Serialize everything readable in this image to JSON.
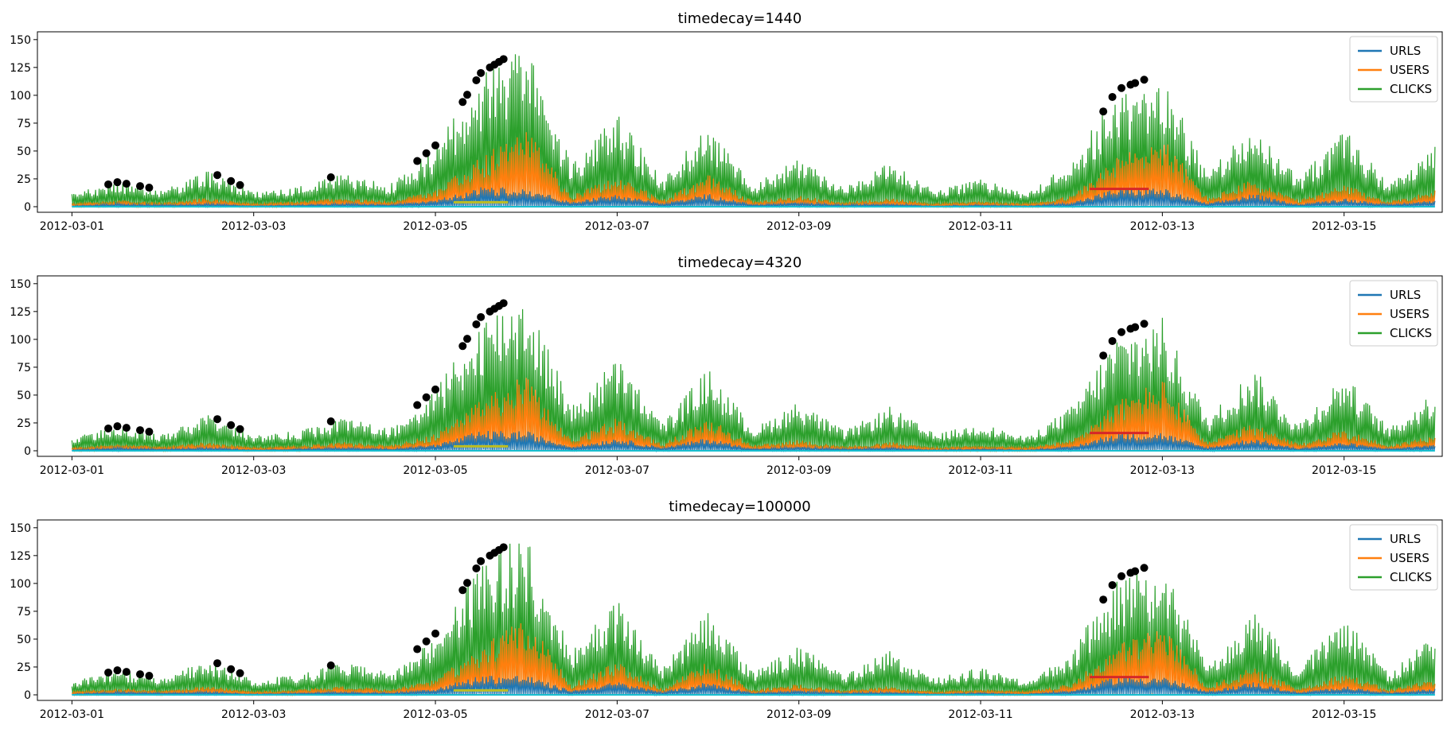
{
  "colors": {
    "urls": "#1f77b4",
    "users": "#ff7f0e",
    "clicks": "#2ca02c",
    "peak_marker": "#000000",
    "highlight_red": "#d62728",
    "highlight_olive": "#bcbd22",
    "highlight_cyan": "#17becf",
    "highlight_navy": "#1f1fd0"
  },
  "chart_data": [
    {
      "type": "line",
      "title": "timedecay=1440",
      "xlabel": "",
      "ylabel": "",
      "xlim": [
        "2012-03-00",
        "2012-03-16"
      ],
      "ylim": [
        -5,
        157
      ],
      "x_ticks": [
        "2012-03-01",
        "2012-03-03",
        "2012-03-05",
        "2012-03-07",
        "2012-03-09",
        "2012-03-11",
        "2012-03-13",
        "2012-03-15"
      ],
      "y_ticks": [
        0,
        25,
        50,
        75,
        100,
        125,
        150
      ],
      "legend": {
        "position": "top-right",
        "entries": [
          "URLS",
          "USERS",
          "CLICKS"
        ]
      },
      "grid": false,
      "series": [
        {
          "name": "CLICKS",
          "x": [
            "2012-03-01",
            "2012-03-01 12:00",
            "2012-03-02",
            "2012-03-02 12:00",
            "2012-03-03",
            "2012-03-03 12:00",
            "2012-03-04",
            "2012-03-04 12:00",
            "2012-03-05",
            "2012-03-05 12:00",
            "2012-03-06",
            "2012-03-06 12:00",
            "2012-03-07",
            "2012-03-07 12:00",
            "2012-03-08",
            "2012-03-08 12:00",
            "2012-03-09",
            "2012-03-09 12:00",
            "2012-03-10",
            "2012-03-10 12:00",
            "2012-03-11",
            "2012-03-11 12:00",
            "2012-03-12",
            "2012-03-12 12:00",
            "2012-03-13",
            "2012-03-13 12:00",
            "2012-03-14",
            "2012-03-14 12:00",
            "2012-03-15",
            "2012-03-15 12:00",
            "2012-03-16"
          ],
          "values": [
            12,
            22,
            15,
            32,
            14,
            18,
            30,
            20,
            55,
            120,
            145,
            40,
            85,
            25,
            75,
            20,
            45,
            18,
            40,
            15,
            25,
            12,
            40,
            105,
            120,
            30,
            75,
            25,
            70,
            20,
            55
          ]
        },
        {
          "name": "USERS",
          "x": [
            "2012-03-01",
            "2012-03-01 12:00",
            "2012-03-02",
            "2012-03-02 12:00",
            "2012-03-03",
            "2012-03-03 12:00",
            "2012-03-04",
            "2012-03-04 12:00",
            "2012-03-05",
            "2012-03-05 12:00",
            "2012-03-06",
            "2012-03-06 12:00",
            "2012-03-07",
            "2012-03-07 12:00",
            "2012-03-08",
            "2012-03-08 12:00",
            "2012-03-09",
            "2012-03-09 12:00",
            "2012-03-10",
            "2012-03-10 12:00",
            "2012-03-11",
            "2012-03-11 12:00",
            "2012-03-12",
            "2012-03-12 12:00",
            "2012-03-13",
            "2012-03-13 12:00",
            "2012-03-14",
            "2012-03-14 12:00",
            "2012-03-15",
            "2012-03-15 12:00",
            "2012-03-16"
          ],
          "values": [
            3,
            6,
            4,
            8,
            3,
            5,
            8,
            5,
            15,
            45,
            70,
            10,
            30,
            6,
            30,
            5,
            10,
            4,
            8,
            3,
            5,
            3,
            10,
            45,
            65,
            8,
            25,
            6,
            20,
            5,
            15
          ]
        },
        {
          "name": "URLS",
          "x": [
            "2012-03-01",
            "2012-03-01 12:00",
            "2012-03-02",
            "2012-03-02 12:00",
            "2012-03-03",
            "2012-03-03 12:00",
            "2012-03-04",
            "2012-03-04 12:00",
            "2012-03-05",
            "2012-03-05 12:00",
            "2012-03-06",
            "2012-03-06 12:00",
            "2012-03-07",
            "2012-03-07 12:00",
            "2012-03-08",
            "2012-03-08 12:00",
            "2012-03-09",
            "2012-03-09 12:00",
            "2012-03-10",
            "2012-03-10 12:00",
            "2012-03-11",
            "2012-03-11 12:00",
            "2012-03-12",
            "2012-03-12 12:00",
            "2012-03-13",
            "2012-03-13 12:00",
            "2012-03-14",
            "2012-03-14 12:00",
            "2012-03-15",
            "2012-03-15 12:00",
            "2012-03-16"
          ],
          "values": [
            1,
            3,
            2,
            3,
            1,
            2,
            3,
            2,
            6,
            18,
            18,
            4,
            12,
            3,
            12,
            2,
            4,
            2,
            3,
            1,
            2,
            1,
            4,
            17,
            17,
            3,
            12,
            2,
            8,
            2,
            6
          ]
        }
      ]
    },
    {
      "type": "line",
      "title": "timedecay=4320",
      "xlabel": "",
      "ylabel": "",
      "xlim": [
        "2012-03-00",
        "2012-03-16"
      ],
      "ylim": [
        -5,
        157
      ],
      "x_ticks": [
        "2012-03-01",
        "2012-03-03",
        "2012-03-05",
        "2012-03-07",
        "2012-03-09",
        "2012-03-11",
        "2012-03-13",
        "2012-03-15"
      ],
      "y_ticks": [
        0,
        25,
        50,
        75,
        100,
        125,
        150
      ],
      "legend": {
        "position": "top-right",
        "entries": [
          "URLS",
          "USERS",
          "CLICKS"
        ]
      },
      "grid": false,
      "series": [
        {
          "name": "CLICKS",
          "x": [
            "2012-03-01",
            "2012-03-01 12:00",
            "2012-03-02",
            "2012-03-02 12:00",
            "2012-03-03",
            "2012-03-03 12:00",
            "2012-03-04",
            "2012-03-04 12:00",
            "2012-03-05",
            "2012-03-05 12:00",
            "2012-03-06",
            "2012-03-06 12:00",
            "2012-03-07",
            "2012-03-07 12:00",
            "2012-03-08",
            "2012-03-08 12:00",
            "2012-03-09",
            "2012-03-09 12:00",
            "2012-03-10",
            "2012-03-10 12:00",
            "2012-03-11",
            "2012-03-11 12:00",
            "2012-03-12",
            "2012-03-12 12:00",
            "2012-03-13",
            "2012-03-13 12:00",
            "2012-03-14",
            "2012-03-14 12:00",
            "2012-03-15",
            "2012-03-15 12:00",
            "2012-03-16"
          ],
          "values": [
            12,
            22,
            15,
            32,
            14,
            18,
            30,
            20,
            55,
            120,
            145,
            40,
            85,
            25,
            75,
            20,
            45,
            18,
            40,
            15,
            25,
            12,
            40,
            105,
            120,
            30,
            75,
            25,
            70,
            20,
            55
          ]
        },
        {
          "name": "USERS",
          "x": [
            "2012-03-01",
            "2012-03-01 12:00",
            "2012-03-02",
            "2012-03-02 12:00",
            "2012-03-03",
            "2012-03-03 12:00",
            "2012-03-04",
            "2012-03-04 12:00",
            "2012-03-05",
            "2012-03-05 12:00",
            "2012-03-06",
            "2012-03-06 12:00",
            "2012-03-07",
            "2012-03-07 12:00",
            "2012-03-08",
            "2012-03-08 12:00",
            "2012-03-09",
            "2012-03-09 12:00",
            "2012-03-10",
            "2012-03-10 12:00",
            "2012-03-11",
            "2012-03-11 12:00",
            "2012-03-12",
            "2012-03-12 12:00",
            "2012-03-13",
            "2012-03-13 12:00",
            "2012-03-14",
            "2012-03-14 12:00",
            "2012-03-15",
            "2012-03-15 12:00",
            "2012-03-16"
          ],
          "values": [
            3,
            6,
            4,
            8,
            3,
            5,
            8,
            5,
            15,
            45,
            70,
            10,
            30,
            6,
            30,
            5,
            10,
            4,
            8,
            3,
            5,
            3,
            10,
            45,
            65,
            8,
            25,
            6,
            20,
            5,
            15
          ]
        },
        {
          "name": "URLS",
          "x": [
            "2012-03-01",
            "2012-03-01 12:00",
            "2012-03-02",
            "2012-03-02 12:00",
            "2012-03-03",
            "2012-03-03 12:00",
            "2012-03-04",
            "2012-03-04 12:00",
            "2012-03-05",
            "2012-03-05 12:00",
            "2012-03-06",
            "2012-03-06 12:00",
            "2012-03-07",
            "2012-03-07 12:00",
            "2012-03-08",
            "2012-03-08 12:00",
            "2012-03-09",
            "2012-03-09 12:00",
            "2012-03-10",
            "2012-03-10 12:00",
            "2012-03-11",
            "2012-03-11 12:00",
            "2012-03-12",
            "2012-03-12 12:00",
            "2012-03-13",
            "2012-03-13 12:00",
            "2012-03-14",
            "2012-03-14 12:00",
            "2012-03-15",
            "2012-03-15 12:00",
            "2012-03-16"
          ],
          "values": [
            1,
            3,
            2,
            3,
            1,
            2,
            3,
            2,
            6,
            18,
            18,
            4,
            12,
            3,
            12,
            2,
            4,
            2,
            3,
            1,
            2,
            1,
            4,
            17,
            17,
            3,
            12,
            2,
            8,
            2,
            6
          ]
        }
      ]
    },
    {
      "type": "line",
      "title": "timedecay=100000",
      "xlabel": "",
      "ylabel": "",
      "xlim": [
        "2012-03-00",
        "2012-03-16"
      ],
      "ylim": [
        -5,
        157
      ],
      "x_ticks": [
        "2012-03-01",
        "2012-03-03",
        "2012-03-05",
        "2012-03-07",
        "2012-03-09",
        "2012-03-11",
        "2012-03-13",
        "2012-03-15"
      ],
      "y_ticks": [
        0,
        25,
        50,
        75,
        100,
        125,
        150
      ],
      "legend": {
        "position": "top-right",
        "entries": [
          "URLS",
          "USERS",
          "CLICKS"
        ]
      },
      "grid": false,
      "series": [
        {
          "name": "CLICKS",
          "x": [
            "2012-03-01",
            "2012-03-01 12:00",
            "2012-03-02",
            "2012-03-02 12:00",
            "2012-03-03",
            "2012-03-03 12:00",
            "2012-03-04",
            "2012-03-04 12:00",
            "2012-03-05",
            "2012-03-05 12:00",
            "2012-03-06",
            "2012-03-06 12:00",
            "2012-03-07",
            "2012-03-07 12:00",
            "2012-03-08",
            "2012-03-08 12:00",
            "2012-03-09",
            "2012-03-09 12:00",
            "2012-03-10",
            "2012-03-10 12:00",
            "2012-03-11",
            "2012-03-11 12:00",
            "2012-03-12",
            "2012-03-12 12:00",
            "2012-03-13",
            "2012-03-13 12:00",
            "2012-03-14",
            "2012-03-14 12:00",
            "2012-03-15",
            "2012-03-15 12:00",
            "2012-03-16"
          ],
          "values": [
            12,
            22,
            15,
            32,
            14,
            18,
            30,
            20,
            55,
            120,
            145,
            40,
            85,
            25,
            75,
            20,
            45,
            18,
            40,
            15,
            25,
            12,
            40,
            105,
            120,
            30,
            75,
            25,
            70,
            20,
            55
          ]
        },
        {
          "name": "USERS",
          "x": [
            "2012-03-01",
            "2012-03-01 12:00",
            "2012-03-02",
            "2012-03-02 12:00",
            "2012-03-03",
            "2012-03-03 12:00",
            "2012-03-04",
            "2012-03-04 12:00",
            "2012-03-05",
            "2012-03-05 12:00",
            "2012-03-06",
            "2012-03-06 12:00",
            "2012-03-07",
            "2012-03-07 12:00",
            "2012-03-08",
            "2012-03-08 12:00",
            "2012-03-09",
            "2012-03-09 12:00",
            "2012-03-10",
            "2012-03-10 12:00",
            "2012-03-11",
            "2012-03-11 12:00",
            "2012-03-12",
            "2012-03-12 12:00",
            "2012-03-13",
            "2012-03-13 12:00",
            "2012-03-14",
            "2012-03-14 12:00",
            "2012-03-15",
            "2012-03-15 12:00",
            "2012-03-16"
          ],
          "values": [
            3,
            6,
            4,
            8,
            3,
            5,
            8,
            5,
            15,
            45,
            70,
            10,
            30,
            6,
            30,
            5,
            10,
            4,
            8,
            3,
            5,
            3,
            10,
            45,
            65,
            8,
            25,
            6,
            20,
            5,
            15
          ]
        },
        {
          "name": "URLS",
          "x": [
            "2012-03-01",
            "2012-03-01 12:00",
            "2012-03-02",
            "2012-03-02 12:00",
            "2012-03-03",
            "2012-03-03 12:00",
            "2012-03-04",
            "2012-03-04 12:00",
            "2012-03-05",
            "2012-03-05 12:00",
            "2012-03-06",
            "2012-03-06 12:00",
            "2012-03-07",
            "2012-03-07 12:00",
            "2012-03-08",
            "2012-03-08 12:00",
            "2012-03-09",
            "2012-03-09 12:00",
            "2012-03-10",
            "2012-03-10 12:00",
            "2012-03-11",
            "2012-03-11 12:00",
            "2012-03-12",
            "2012-03-12 12:00",
            "2012-03-13",
            "2012-03-13 12:00",
            "2012-03-14",
            "2012-03-14 12:00",
            "2012-03-15",
            "2012-03-15 12:00",
            "2012-03-16"
          ],
          "values": [
            1,
            3,
            2,
            3,
            1,
            2,
            3,
            2,
            6,
            18,
            18,
            4,
            12,
            3,
            12,
            2,
            4,
            2,
            3,
            1,
            2,
            1,
            4,
            17,
            17,
            3,
            12,
            2,
            8,
            2,
            6
          ]
        }
      ]
    }
  ]
}
